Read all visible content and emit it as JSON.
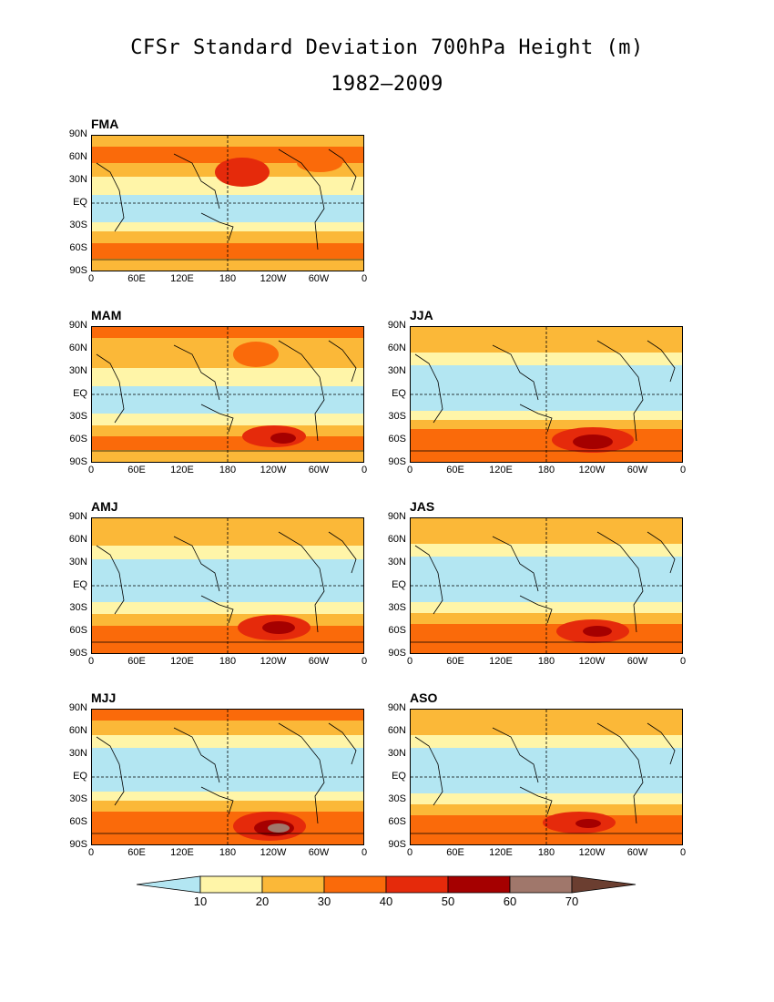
{
  "title": "CFSr Standard Deviation 700hPa Height (m)",
  "subtitle": "1982–2009",
  "lat_labels": [
    "90N",
    "60N",
    "30N",
    "EQ",
    "30S",
    "60S",
    "90S"
  ],
  "lon_labels": [
    "0",
    "60E",
    "120E",
    "180",
    "120W",
    "60W",
    "0"
  ],
  "panels": [
    {
      "label": "FMA"
    },
    {
      "label": "MAM"
    },
    {
      "label": "JJA"
    },
    {
      "label": "AMJ"
    },
    {
      "label": "JAS"
    },
    {
      "label": "MJJ"
    },
    {
      "label": "ASO"
    }
  ],
  "colorbar": {
    "levels": [
      "10",
      "20",
      "30",
      "40",
      "50",
      "60",
      "70"
    ],
    "colors": [
      "#b3e6f2",
      "#fff5a8",
      "#fbb838",
      "#fa6a0a",
      "#e52a0b",
      "#a50000",
      "#a0776b",
      "#6b3e30"
    ]
  }
}
